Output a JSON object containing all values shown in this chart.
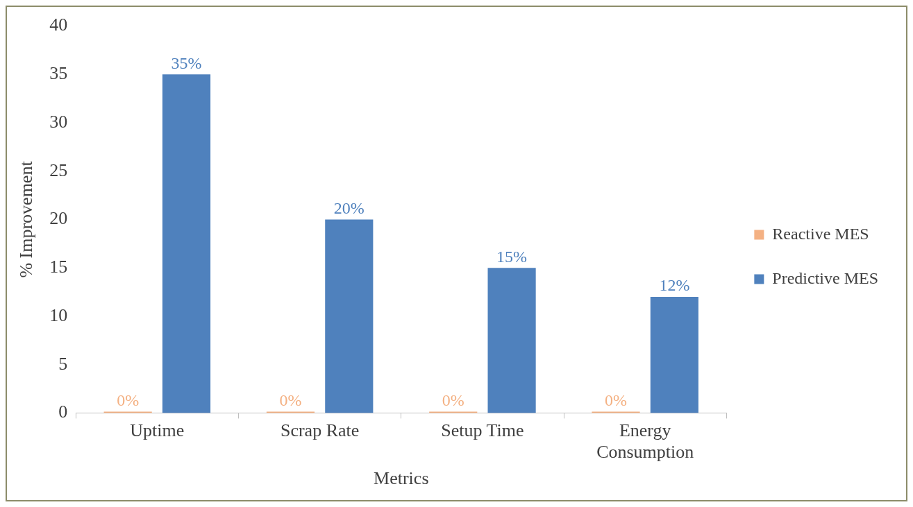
{
  "chart_data": {
    "type": "bar",
    "xlabel": "Metrics",
    "ylabel": "% Improvement",
    "categories": [
      "Uptime",
      "Scrap Rate",
      "Setup Time",
      "Energy Consumption"
    ],
    "series": [
      {
        "name": "Reactive MES",
        "color": "#f4b183",
        "values": [
          0,
          0,
          0,
          0
        ],
        "value_labels": [
          "0%",
          "0%",
          "0%",
          "0%"
        ]
      },
      {
        "name": "Predictive MES",
        "color": "#4f81bd",
        "values": [
          35,
          20,
          15,
          12
        ],
        "value_labels": [
          "35%",
          "20%",
          "15%",
          "12%"
        ]
      }
    ],
    "ylim": [
      0,
      40
    ],
    "yticks": [
      0,
      5,
      10,
      15,
      20,
      25,
      30,
      35,
      40
    ],
    "grid": false,
    "legend": "right"
  }
}
